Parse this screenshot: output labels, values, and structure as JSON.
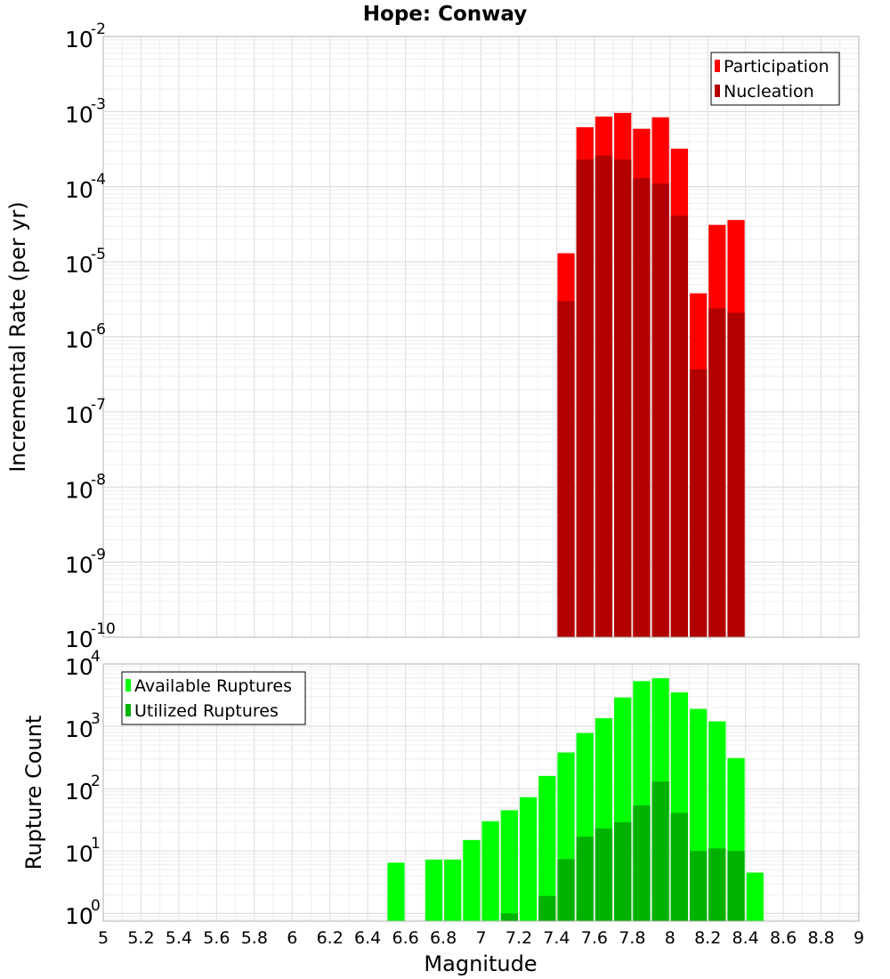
{
  "title": "Hope: Conway",
  "xlabel": "Magnitude",
  "x_tick_labels": [
    "5",
    "5.2",
    "5.4",
    "5.6",
    "5.8",
    "6",
    "6.2",
    "6.4",
    "6.6",
    "6.8",
    "7",
    "7.2",
    "7.4",
    "7.6",
    "7.8",
    "8",
    "8.2",
    "8.4",
    "8.6",
    "8.8",
    "9"
  ],
  "colors": {
    "participation": "#ff0000",
    "nucleation": "#b20000",
    "available": "#00ff00",
    "utilized": "#00b200",
    "grid": "#e6e6e6",
    "frame": "#b0b0b0"
  },
  "chart_data": [
    {
      "type": "bar",
      "scale": "log",
      "title": "Hope: Conway",
      "ylabel": "Incremental Rate (per yr)",
      "xlim": [
        5,
        9
      ],
      "ylim": [
        1e-10,
        0.01
      ],
      "y_tick_exponents": [
        -10,
        -9,
        -8,
        -7,
        -6,
        -5,
        -4,
        -3,
        -2
      ],
      "legend_position": "top-right",
      "bin_width": 0.1,
      "x": [
        7.45,
        7.55,
        7.65,
        7.75,
        7.85,
        7.95,
        8.05,
        8.15,
        8.25,
        8.35
      ],
      "series": [
        {
          "name": "Participation",
          "values": [
            1.3e-05,
            0.00062,
            0.00086,
            0.00096,
            0.00059,
            0.00084,
            0.00032,
            3.8e-06,
            3.1e-05,
            3.6e-05
          ]
        },
        {
          "name": "Nucleation",
          "values": [
            3e-06,
            0.00023,
            0.00026,
            0.00023,
            0.00013,
            0.00011,
            4.1e-05,
            3.7e-07,
            2.4e-06,
            2.1e-06
          ]
        }
      ]
    },
    {
      "type": "bar",
      "scale": "log",
      "ylabel": "Rupture Count",
      "xlim": [
        5,
        9
      ],
      "ylim": [
        0.75,
        10000.0
      ],
      "y_tick_exponents": [
        0,
        1,
        2,
        3,
        4
      ],
      "legend_position": "top-left",
      "bin_width": 0.1,
      "x": [
        6.55,
        6.65,
        6.75,
        6.85,
        6.95,
        7.05,
        7.15,
        7.25,
        7.35,
        7.45,
        7.55,
        7.65,
        7.75,
        7.85,
        7.95,
        8.05,
        8.15,
        8.25,
        8.35,
        8.45
      ],
      "series": [
        {
          "name": "Available Ruptures",
          "values": [
            6.5,
            0,
            7.3,
            7.3,
            15,
            30,
            45,
            73,
            160,
            380,
            780,
            1350,
            2900,
            5300,
            5900,
            3500,
            1900,
            1200,
            310,
            4.5
          ]
        },
        {
          "name": "Utilized Ruptures",
          "values": [
            0,
            0,
            0,
            0,
            0,
            0,
            1,
            0,
            1.9,
            7.4,
            17,
            23,
            29,
            54,
            130,
            41,
            10,
            11,
            10,
            0
          ]
        }
      ]
    }
  ]
}
